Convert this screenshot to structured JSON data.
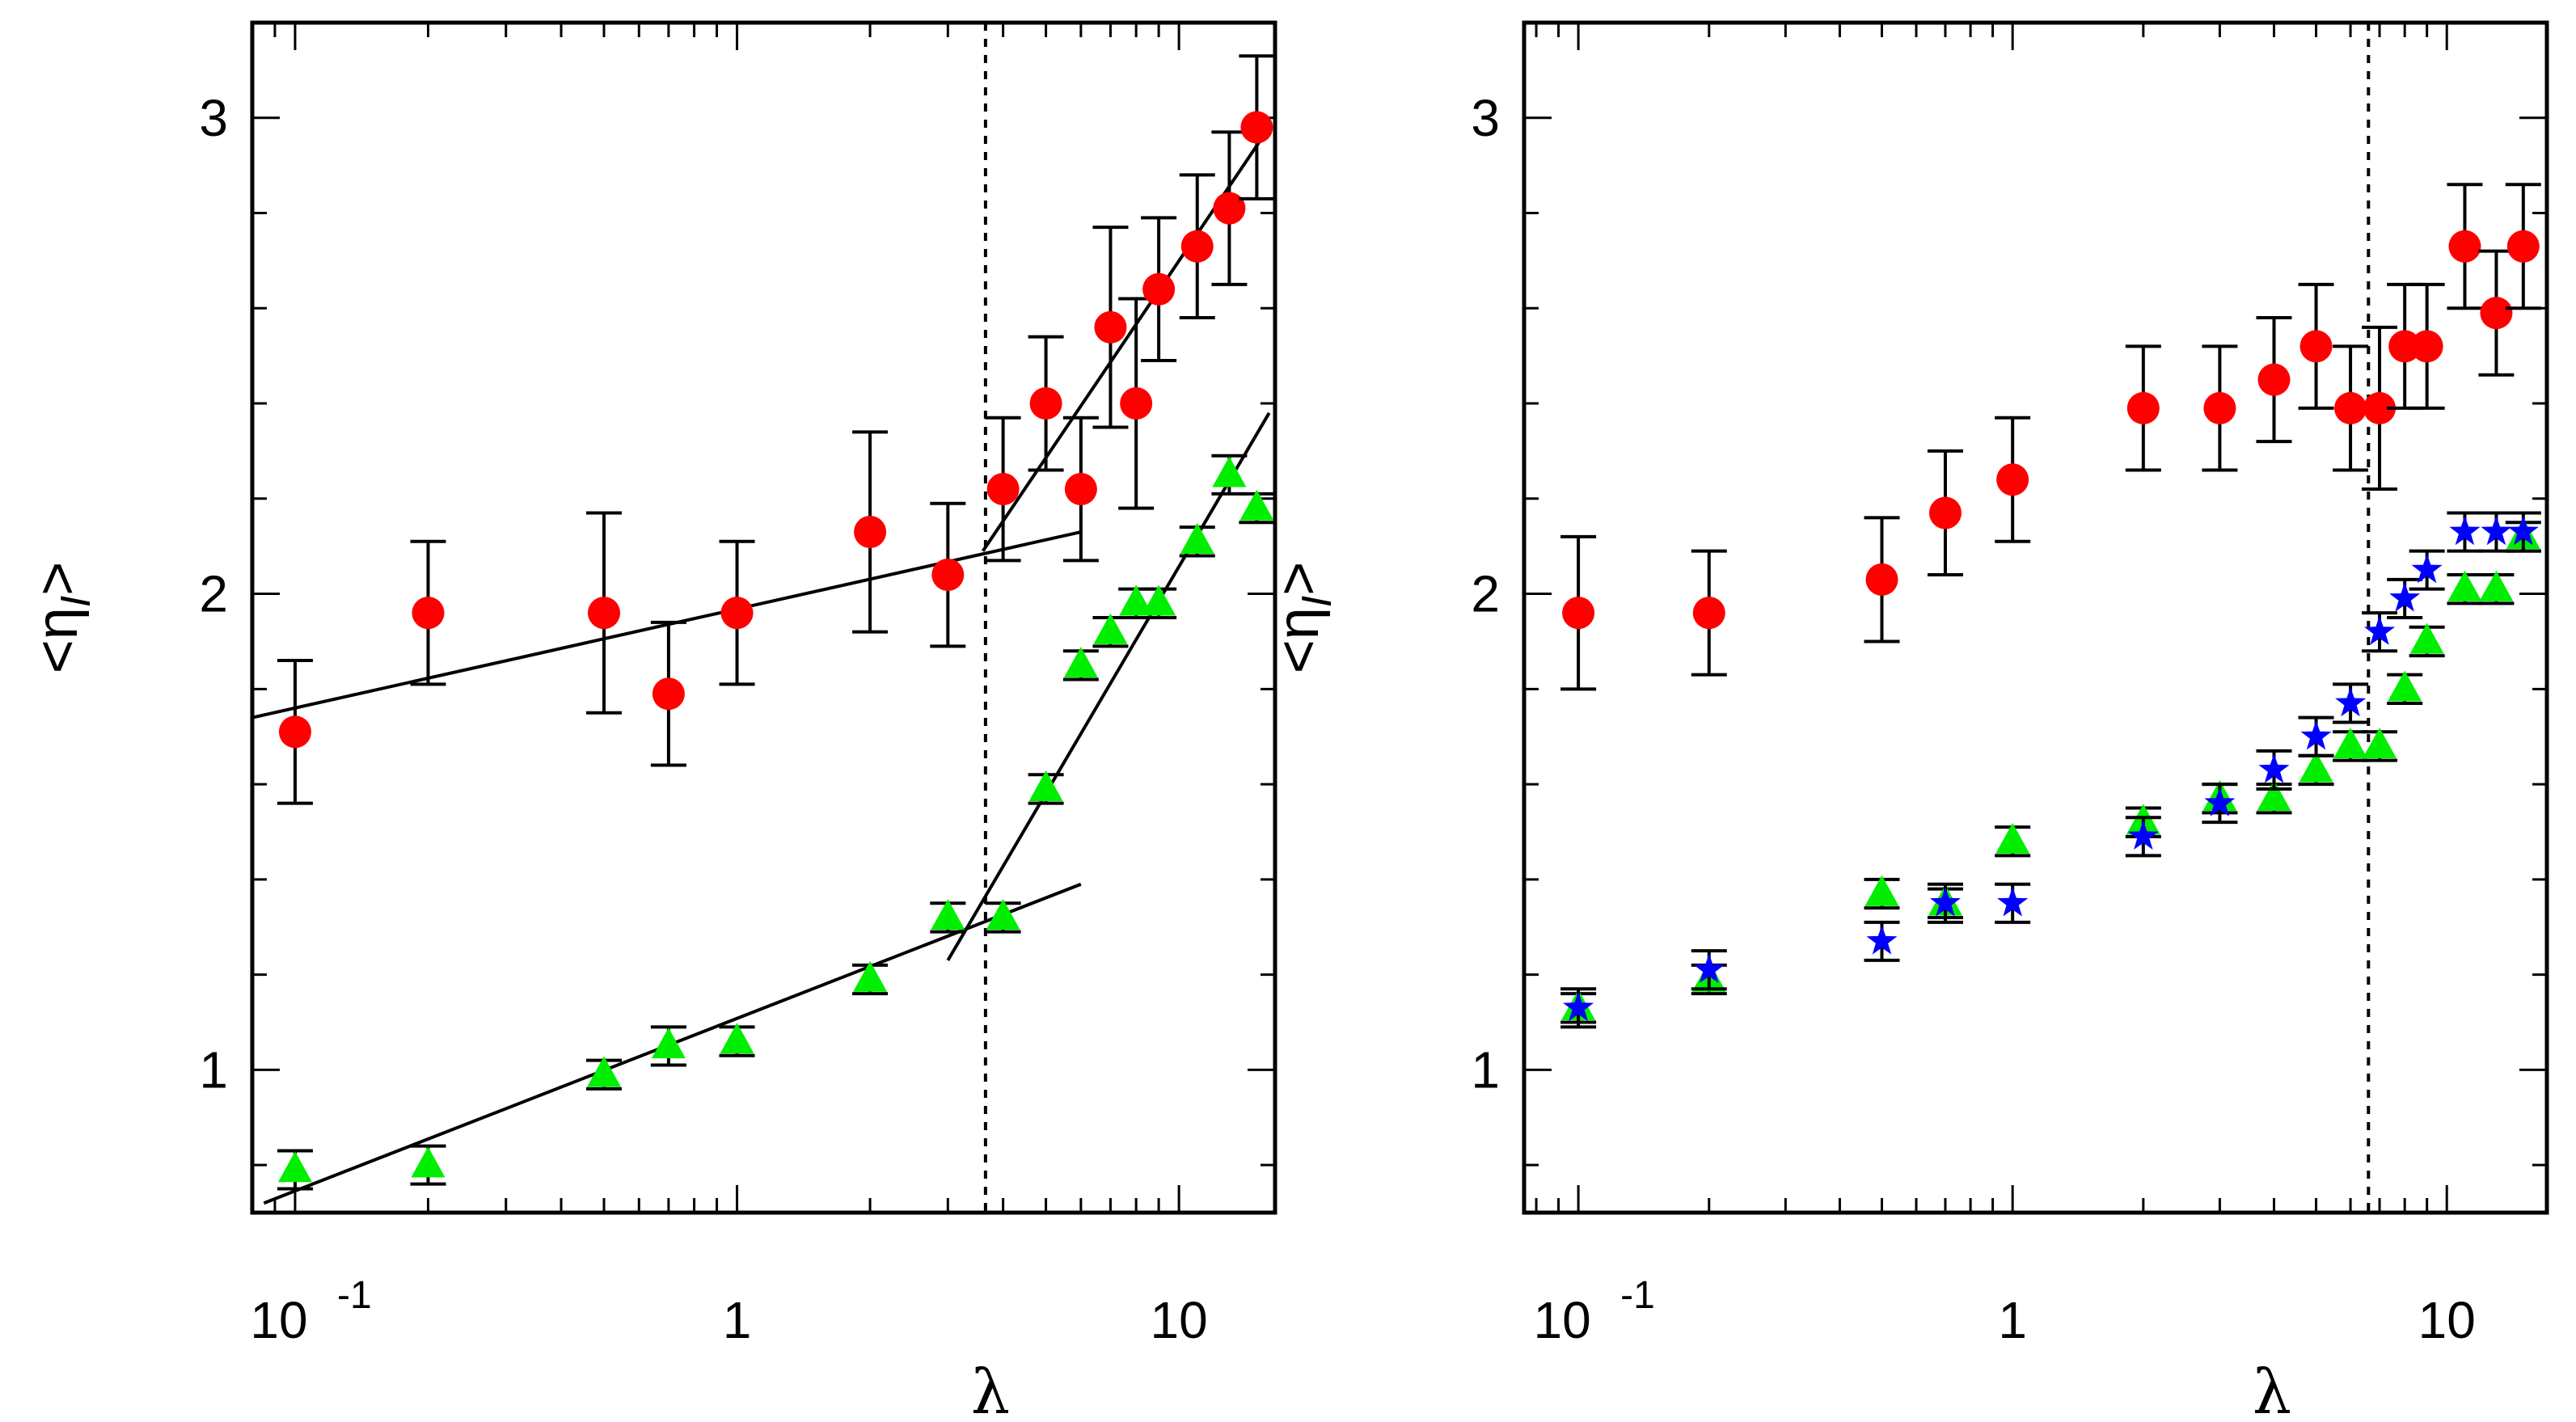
{
  "chart_data": [
    {
      "type": "scatter",
      "panel": "left",
      "xlabel": "λ",
      "ylabel": "<η_I>",
      "xscale": "log",
      "xlim": [
        0.08,
        16.5
      ],
      "ylim": [
        0.7,
        3.2
      ],
      "yticks": [
        1,
        2,
        3
      ],
      "xtick_labels": [
        {
          "value": 0.1,
          "base": "10",
          "exp": "-1"
        },
        {
          "value": 1,
          "base": "1",
          "exp": ""
        },
        {
          "value": 10,
          "base": "10",
          "exp": ""
        }
      ],
      "vline": 3.65,
      "series": [
        {
          "name": "circles",
          "marker": "circle",
          "color": "#ff0000",
          "x": [
            0.1,
            0.2,
            0.5,
            0.7,
            1.0,
            2.0,
            3.0,
            4.0,
            5.0,
            6.0,
            7.0,
            8.0,
            9.0,
            11.0,
            13.0,
            15.0
          ],
          "y": [
            1.71,
            1.96,
            1.96,
            1.79,
            1.96,
            2.13,
            2.04,
            2.22,
            2.4,
            2.22,
            2.56,
            2.4,
            2.64,
            2.73,
            2.81,
            2.98
          ],
          "err": [
            0.15,
            0.15,
            0.21,
            0.15,
            0.15,
            0.21,
            0.15,
            0.15,
            0.14,
            0.15,
            0.21,
            0.22,
            0.15,
            0.15,
            0.16,
            0.15
          ]
        },
        {
          "name": "triangles",
          "marker": "triangle",
          "color": "#00ee00",
          "x": [
            0.1,
            0.2,
            0.5,
            0.7,
            1.0,
            2.0,
            3.0,
            4.0,
            5.0,
            6.0,
            7.0,
            8.0,
            9.0,
            11.0,
            13.0,
            15.0
          ],
          "y": [
            0.79,
            0.8,
            0.99,
            1.05,
            1.06,
            1.19,
            1.32,
            1.32,
            1.59,
            1.85,
            1.92,
            1.98,
            1.98,
            2.11,
            2.25,
            2.18
          ],
          "err": [
            0.04,
            0.04,
            0.03,
            0.04,
            0.03,
            0.03,
            0.03,
            0.03,
            0.03,
            0.03,
            0.03,
            0.03,
            0.03,
            0.03,
            0.04,
            0.03
          ]
        }
      ],
      "fit_lines": [
        {
          "x": [
            0.08,
            6.0
          ],
          "y": [
            1.74,
            2.13
          ]
        },
        {
          "x": [
            3.6,
            16.0
          ],
          "y": [
            2.09,
            2.98
          ]
        },
        {
          "x": [
            0.085,
            6.0
          ],
          "y": [
            0.72,
            1.39
          ]
        },
        {
          "x": [
            3.0,
            16.0
          ],
          "y": [
            1.23,
            2.38
          ]
        }
      ]
    },
    {
      "type": "scatter",
      "panel": "right",
      "xlabel": "λ",
      "ylabel": "<η_I>",
      "xscale": "log",
      "xlim": [
        0.075,
        17.0
      ],
      "ylim": [
        0.7,
        3.2
      ],
      "yticks": [
        1,
        2,
        3
      ],
      "xtick_labels": [
        {
          "value": 0.1,
          "base": "10",
          "exp": "-1"
        },
        {
          "value": 1,
          "base": "1",
          "exp": ""
        },
        {
          "value": 10,
          "base": "10",
          "exp": ""
        }
      ],
      "vline": 6.6,
      "series": [
        {
          "name": "circles",
          "marker": "circle",
          "color": "#ff0000",
          "x": [
            0.1,
            0.2,
            0.5,
            0.7,
            1.0,
            2.0,
            3.0,
            4.0,
            5.0,
            6.0,
            7.0,
            8.0,
            9.0,
            11.0,
            13.0,
            15.0
          ],
          "y": [
            1.96,
            1.96,
            2.03,
            2.17,
            2.24,
            2.39,
            2.39,
            2.45,
            2.52,
            2.39,
            2.39,
            2.52,
            2.52,
            2.73,
            2.59,
            2.73
          ],
          "err": [
            0.16,
            0.13,
            0.13,
            0.13,
            0.13,
            0.13,
            0.13,
            0.13,
            0.13,
            0.13,
            0.17,
            0.13,
            0.13,
            0.13,
            0.13,
            0.13
          ]
        },
        {
          "name": "triangles",
          "marker": "triangle",
          "color": "#00ee00",
          "x": [
            0.1,
            0.2,
            0.5,
            0.7,
            1.0,
            2.0,
            3.0,
            4.0,
            5.0,
            6.0,
            7.0,
            8.0,
            9.0,
            11.0,
            13.0,
            15.0
          ],
          "y": [
            1.13,
            1.19,
            1.37,
            1.35,
            1.48,
            1.52,
            1.57,
            1.57,
            1.63,
            1.68,
            1.68,
            1.8,
            1.9,
            2.01,
            2.01,
            2.12
          ],
          "err": [
            0.03,
            0.03,
            0.03,
            0.03,
            0.03,
            0.03,
            0.03,
            0.03,
            0.03,
            0.03,
            0.03,
            0.03,
            0.03,
            0.03,
            0.03,
            0.03
          ]
        },
        {
          "name": "stars",
          "marker": "star",
          "color": "#0000ff",
          "x": [
            0.1,
            0.2,
            0.5,
            0.7,
            1.0,
            2.0,
            3.0,
            4.0,
            5.0,
            6.0,
            7.0,
            8.0,
            9.0,
            11.0,
            13.0,
            15.0
          ],
          "y": [
            1.13,
            1.21,
            1.27,
            1.35,
            1.35,
            1.49,
            1.56,
            1.63,
            1.7,
            1.77,
            1.92,
            1.99,
            2.05,
            2.13,
            2.13,
            2.13
          ],
          "err": [
            0.04,
            0.04,
            0.04,
            0.04,
            0.04,
            0.04,
            0.04,
            0.04,
            0.04,
            0.04,
            0.04,
            0.04,
            0.04,
            0.04,
            0.04,
            0.04
          ]
        }
      ],
      "fit_lines": []
    }
  ]
}
